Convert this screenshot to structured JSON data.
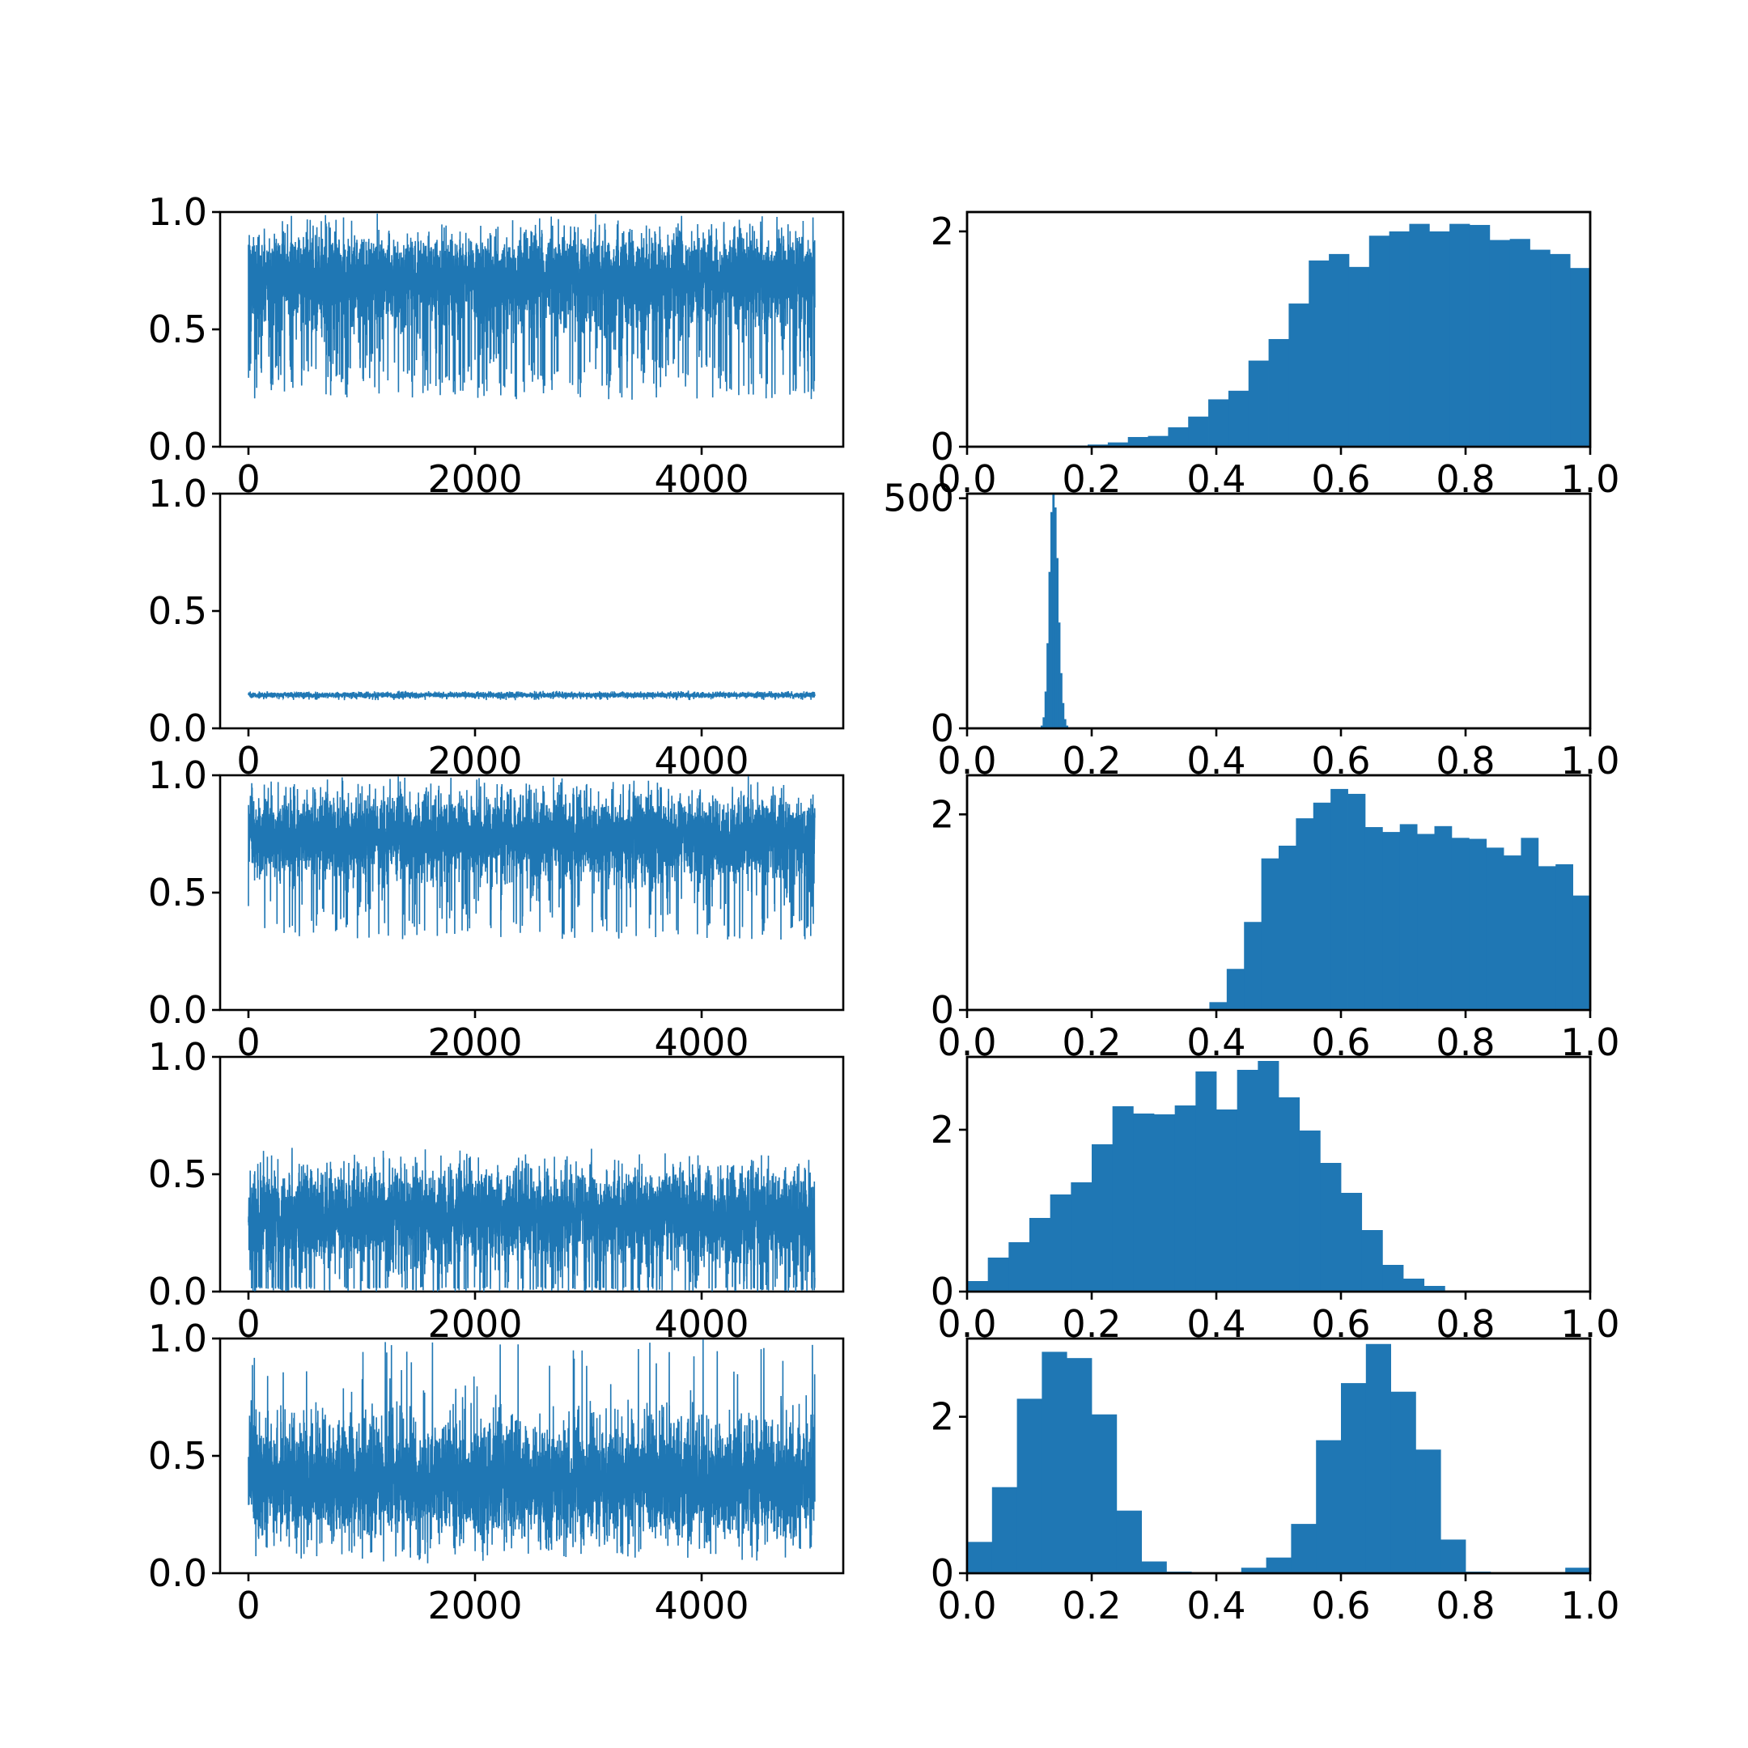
{
  "figure": {
    "rows": 5,
    "cols": 2
  },
  "colors": {
    "series": "#1f77b4",
    "axes": "#000000",
    "background": "#ffffff"
  },
  "chart_data": [
    {
      "type": "line",
      "panel": "trace",
      "xlim": [
        -250,
        5250
      ],
      "ylim": [
        0,
        1
      ],
      "xticks": [
        0,
        2000,
        4000
      ],
      "xtick_labels": [
        "0",
        "2000",
        "4000"
      ],
      "yticks": [
        0,
        0.5,
        1
      ],
      "ytick_labels": [
        "0.0",
        "0.5",
        "1.0"
      ],
      "samples": 5000,
      "trace": {
        "center": 0.76,
        "upper": 1.0,
        "lower": 0.42,
        "spike_min": 0.2,
        "spike_rate": 0.06
      },
      "title": "",
      "xlabel": "",
      "ylabel": ""
    },
    {
      "type": "bar",
      "panel": "histogram",
      "bin_range": [
        0,
        1
      ],
      "values": [
        0,
        0,
        0,
        0,
        0,
        0.01,
        0.02,
        0.04,
        0.09,
        0.1,
        0.18,
        0.28,
        0.44,
        0.52,
        0.8,
        1.0,
        1.33,
        1.73,
        1.79,
        1.67,
        1.96,
        2.0,
        2.07,
        2.0,
        2.07,
        2.06,
        1.92,
        1.93,
        1.83,
        1.79,
        1.66
      ],
      "xlim": [
        0,
        1
      ],
      "ylim": [
        0,
        2.18
      ],
      "xticks": [
        0,
        0.2,
        0.4,
        0.6,
        0.8,
        1.0
      ],
      "xtick_labels": [
        "0.0",
        "0.2",
        "0.4",
        "0.6",
        "0.8",
        "1.0"
      ],
      "yticks": [
        0,
        2
      ],
      "ytick_labels": [
        "0",
        "2"
      ],
      "title": "",
      "xlabel": "",
      "ylabel": ""
    },
    {
      "type": "line",
      "panel": "trace",
      "xlim": [
        -250,
        5250
      ],
      "ylim": [
        0,
        1
      ],
      "xticks": [
        0,
        2000,
        4000
      ],
      "xtick_labels": [
        "0",
        "2000",
        "4000"
      ],
      "yticks": [
        0,
        0.5,
        1
      ],
      "ytick_labels": [
        "0.0",
        "0.5",
        "1.0"
      ],
      "samples": 5000,
      "trace": {
        "center": 0.14,
        "upper": 0.16,
        "lower": 0.125,
        "spike_min": 0.12,
        "spike_rate": 0.01
      },
      "title": "",
      "xlabel": "",
      "ylabel": ""
    },
    {
      "type": "bar",
      "panel": "histogram",
      "bin_range": [
        0.115,
        0.165
      ],
      "values": [
        0,
        6,
        24,
        80,
        185,
        340,
        470,
        520,
        480,
        370,
        230,
        120,
        55,
        20,
        6,
        0
      ],
      "xlim": [
        0,
        1
      ],
      "ylim": [
        0,
        510
      ],
      "xticks": [
        0,
        0.2,
        0.4,
        0.6,
        0.8,
        1.0
      ],
      "xtick_labels": [
        "0.0",
        "0.2",
        "0.4",
        "0.6",
        "0.8",
        "1.0"
      ],
      "yticks": [
        0,
        500
      ],
      "ytick_labels": [
        "0",
        "500"
      ],
      "title": "",
      "xlabel": "",
      "ylabel": ""
    },
    {
      "type": "line",
      "panel": "trace",
      "xlim": [
        -250,
        5250
      ],
      "ylim": [
        0,
        1
      ],
      "xticks": [
        0,
        2000,
        4000
      ],
      "xtick_labels": [
        "0",
        "2000",
        "4000"
      ],
      "yticks": [
        0,
        0.5,
        1
      ],
      "ytick_labels": [
        "0.0",
        "0.5",
        "1.0"
      ],
      "samples": 5000,
      "trace": {
        "center": 0.72,
        "upper": 1.0,
        "lower": 0.48,
        "spike_min": 0.3,
        "spike_rate": 0.03
      },
      "title": "",
      "xlabel": "",
      "ylabel": ""
    },
    {
      "type": "bar",
      "panel": "histogram",
      "bin_range": [
        0,
        1
      ],
      "values": [
        0,
        0,
        0,
        0,
        0,
        0,
        0,
        0,
        0,
        0,
        0,
        0,
        0,
        0.01,
        0.08,
        0.42,
        0.9,
        1.55,
        1.68,
        1.96,
        2.12,
        2.26,
        2.21,
        1.87,
        1.82,
        1.9,
        1.8,
        1.88,
        1.76,
        1.75,
        1.66,
        1.58,
        1.76,
        1.47,
        1.49,
        1.17
      ],
      "xlim": [
        0,
        1
      ],
      "ylim": [
        0,
        2.4
      ],
      "xticks": [
        0,
        0.2,
        0.4,
        0.6,
        0.8,
        1.0
      ],
      "xtick_labels": [
        "0.0",
        "0.2",
        "0.4",
        "0.6",
        "0.8",
        "1.0"
      ],
      "yticks": [
        0,
        2
      ],
      "ytick_labels": [
        "0",
        "2"
      ],
      "title": "",
      "xlabel": "",
      "ylabel": ""
    },
    {
      "type": "line",
      "panel": "trace",
      "xlim": [
        -250,
        5250
      ],
      "ylim": [
        0,
        1
      ],
      "xticks": [
        0,
        2000,
        4000
      ],
      "xtick_labels": [
        "0",
        "2000",
        "4000"
      ],
      "yticks": [
        0,
        0.5,
        1
      ],
      "ytick_labels": [
        "0.0",
        "0.5",
        "1.0"
      ],
      "samples": 5000,
      "trace": {
        "center": 0.33,
        "upper": 0.62,
        "lower": 0.02,
        "spike_min": 0.0,
        "spike_rate": 0.04
      },
      "title": "",
      "xlabel": "",
      "ylabel": ""
    },
    {
      "type": "bar",
      "panel": "histogram",
      "bin_range": [
        0,
        1
      ],
      "values": [
        0.13,
        0.42,
        0.61,
        0.91,
        1.2,
        1.35,
        1.82,
        2.29,
        2.2,
        2.19,
        2.3,
        2.72,
        2.25,
        2.74,
        2.85,
        2.4,
        1.99,
        1.59,
        1.22,
        0.76,
        0.33,
        0.16,
        0.07,
        0.01,
        0,
        0,
        0,
        0,
        0,
        0
      ],
      "xlim": [
        0,
        1
      ],
      "ylim": [
        0,
        2.9
      ],
      "xticks": [
        0,
        0.2,
        0.4,
        0.6,
        0.8,
        1.0
      ],
      "xtick_labels": [
        "0.0",
        "0.2",
        "0.4",
        "0.6",
        "0.8",
        "1.0"
      ],
      "yticks": [
        0,
        2
      ],
      "ytick_labels": [
        "0",
        "2"
      ],
      "title": "",
      "xlabel": "",
      "ylabel": ""
    },
    {
      "type": "line",
      "panel": "trace",
      "xlim": [
        -250,
        5250
      ],
      "ylim": [
        0,
        1
      ],
      "xticks": [
        0,
        2000,
        4000
      ],
      "xtick_labels": [
        "0",
        "2000",
        "4000"
      ],
      "yticks": [
        0,
        0.5,
        1
      ],
      "ytick_labels": [
        "0.0",
        "0.5",
        "1.0"
      ],
      "samples": 5000,
      "trace": {
        "center": 0.4,
        "upper": 0.75,
        "lower": 0.03,
        "spike_max": 1.0,
        "spike_rate": 0.01
      },
      "title": "",
      "xlabel": "",
      "ylabel": ""
    },
    {
      "type": "bar",
      "panel": "histogram",
      "bin_range": [
        0,
        1
      ],
      "values": [
        0.4,
        1.1,
        2.23,
        2.83,
        2.75,
        2.03,
        0.8,
        0.15,
        0.02,
        0,
        0,
        0.07,
        0.2,
        0.63,
        1.7,
        2.43,
        2.93,
        2.32,
        1.58,
        0.43,
        0.02,
        0,
        0,
        0,
        0.07
      ],
      "xlim": [
        0,
        1
      ],
      "ylim": [
        0,
        3.0
      ],
      "xticks": [
        0,
        0.2,
        0.4,
        0.6,
        0.8,
        1.0
      ],
      "xtick_labels": [
        "0.0",
        "0.2",
        "0.4",
        "0.6",
        "0.8",
        "1.0"
      ],
      "yticks": [
        0,
        2
      ],
      "ytick_labels": [
        "0",
        "2"
      ],
      "title": "",
      "xlabel": "",
      "ylabel": ""
    }
  ]
}
